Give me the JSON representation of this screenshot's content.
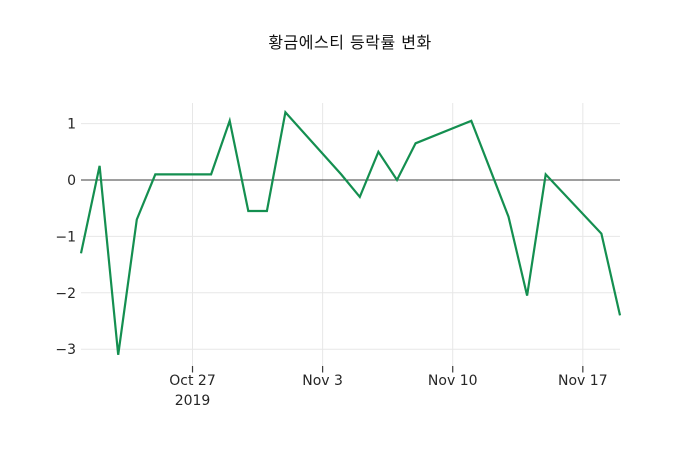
{
  "chart_data": {
    "type": "line",
    "title": "황금에스티 등락률 변화",
    "xlabel": "",
    "ylabel": "",
    "grid": true,
    "legend": "none",
    "x_unit": "date (daily stock trading days, Oct-Nov 2019)",
    "xlim_days": [
      0,
      29
    ],
    "ylim": [
      -3.32,
      1.42
    ],
    "x_ticks": [
      {
        "day": 6,
        "lines": [
          "Oct 27",
          "2019"
        ]
      },
      {
        "day": 13,
        "lines": [
          "Nov 3"
        ]
      },
      {
        "day": 20,
        "lines": [
          "Nov 10"
        ]
      },
      {
        "day": 27,
        "lines": [
          "Nov 17"
        ]
      }
    ],
    "y_ticks": [
      {
        "value": 1,
        "label": "1"
      },
      {
        "value": 0,
        "label": "0"
      },
      {
        "value": -1,
        "label": "−1"
      },
      {
        "value": -2,
        "label": "−2"
      },
      {
        "value": -3,
        "label": "−3"
      }
    ],
    "zero_line": true,
    "series": [
      {
        "name": "등락률",
        "points": [
          {
            "date": "Oct 21",
            "day": 0,
            "value": -1.3
          },
          {
            "date": "Oct 22",
            "day": 1,
            "value": 0.25
          },
          {
            "date": "Oct 23",
            "day": 2,
            "value": -3.1
          },
          {
            "date": "Oct 24",
            "day": 3,
            "value": -0.7
          },
          {
            "date": "Oct 25",
            "day": 4,
            "value": 0.1
          },
          {
            "date": "Oct 28",
            "day": 7,
            "value": 0.1
          },
          {
            "date": "Oct 29",
            "day": 8,
            "value": 1.05
          },
          {
            "date": "Oct 30",
            "day": 9,
            "value": -0.55
          },
          {
            "date": "Oct 31",
            "day": 10,
            "value": -0.55
          },
          {
            "date": "Nov 1",
            "day": 11,
            "value": 1.2
          },
          {
            "date": "Nov 4",
            "day": 14,
            "value": 0.1
          },
          {
            "date": "Nov 5",
            "day": 15,
            "value": -0.3
          },
          {
            "date": "Nov 6",
            "day": 16,
            "value": 0.5
          },
          {
            "date": "Nov 7",
            "day": 17,
            "value": 0.0
          },
          {
            "date": "Nov 8",
            "day": 18,
            "value": 0.65
          },
          {
            "date": "Nov 11",
            "day": 21,
            "value": 1.05
          },
          {
            "date": "Nov 12",
            "day": 22,
            "value": 0.2
          },
          {
            "date": "Nov 13",
            "day": 23,
            "value": -0.65
          },
          {
            "date": "Nov 14",
            "day": 24,
            "value": -2.05
          },
          {
            "date": "Nov 15",
            "day": 25,
            "value": 0.1
          },
          {
            "date": "Nov 18",
            "day": 28,
            "value": -0.95
          },
          {
            "date": "Nov 19",
            "day": 29,
            "value": -2.4
          }
        ]
      }
    ],
    "colors": {
      "line": "#148f50",
      "grid": "#e7e7e7",
      "zero_line": "#3c3c3c",
      "tick_mark": "#3a3a3a",
      "tick_label": "#262626",
      "title": "#111111",
      "background": "#ffffff"
    }
  }
}
